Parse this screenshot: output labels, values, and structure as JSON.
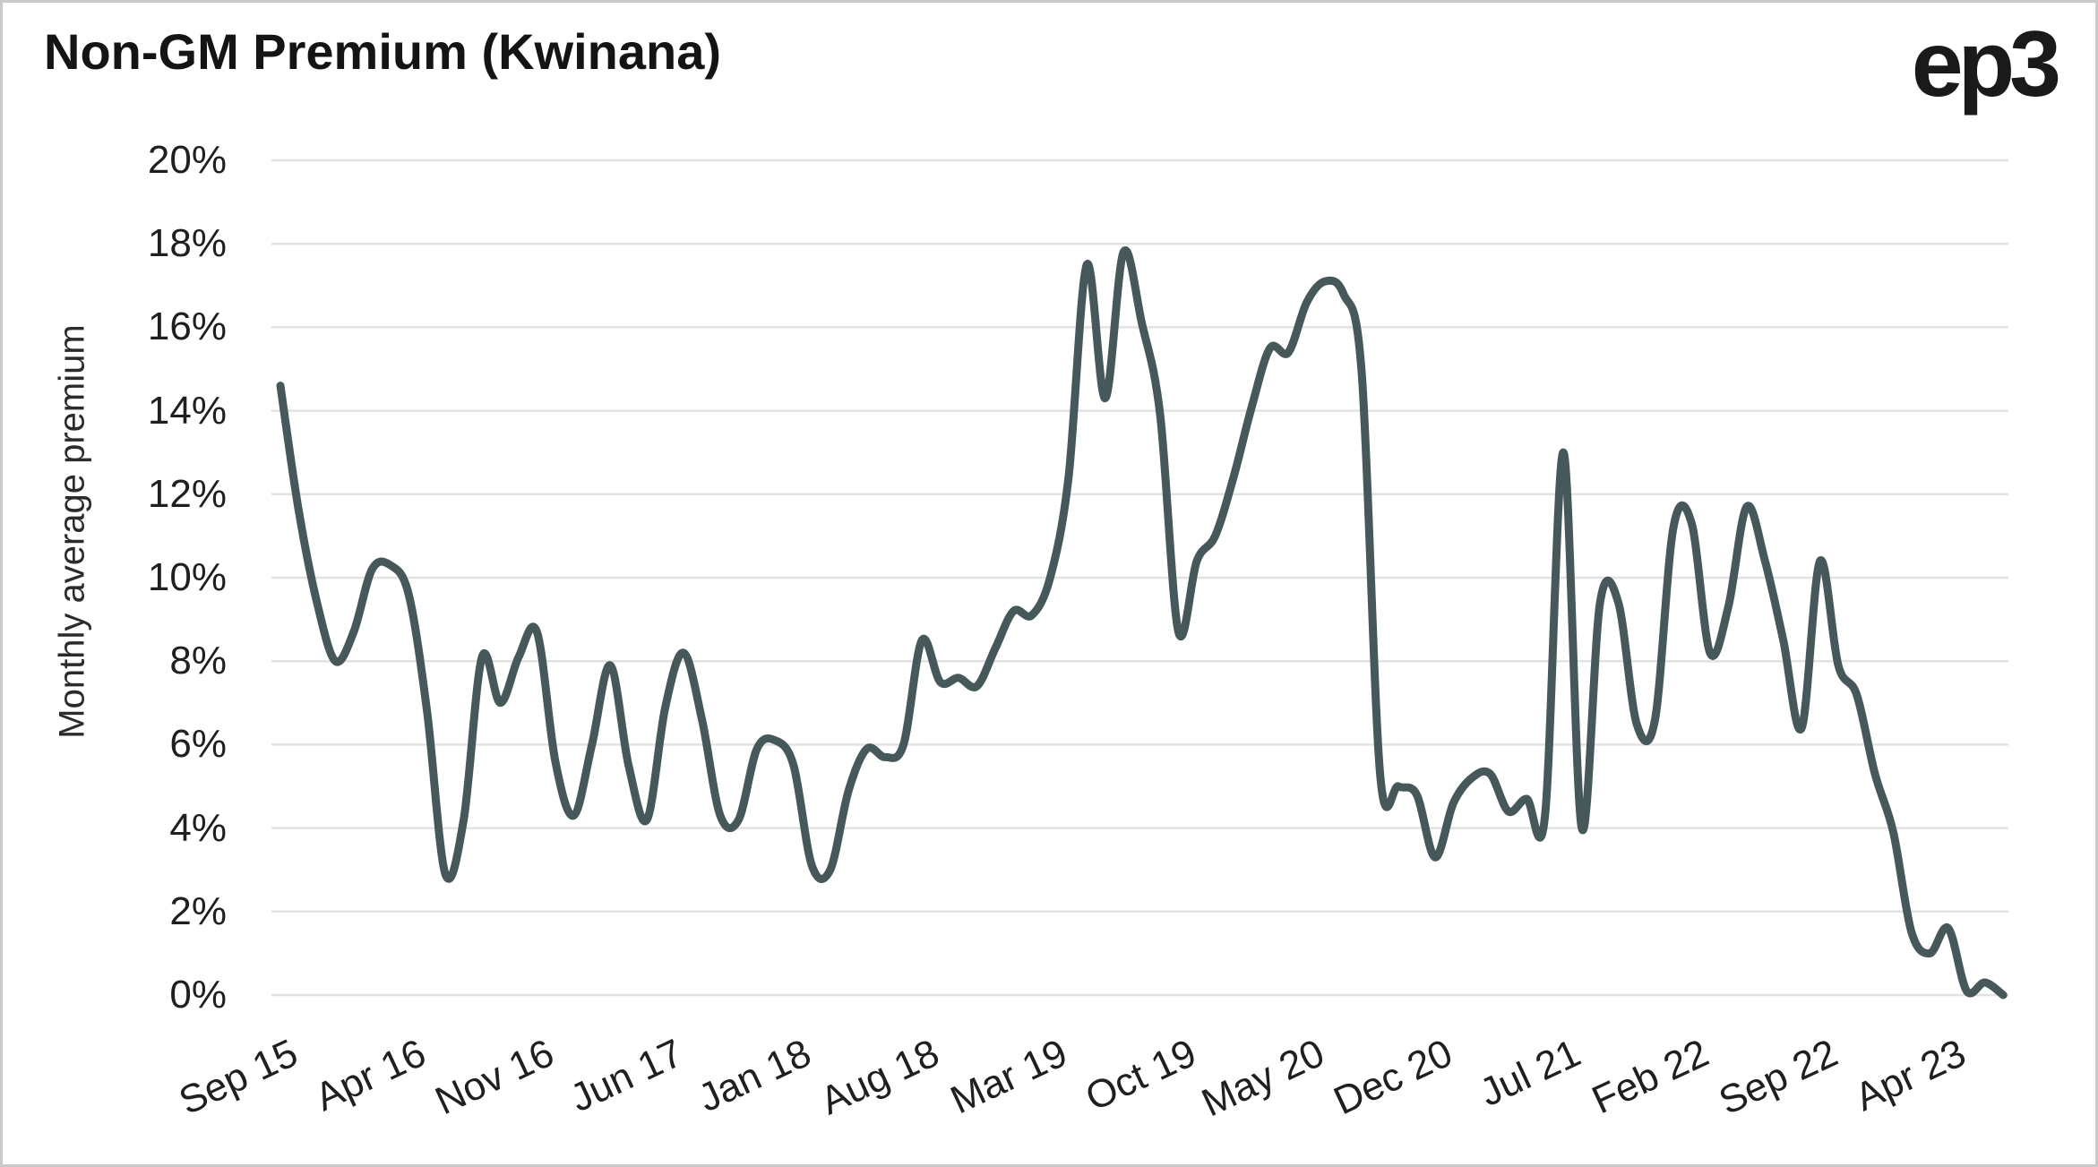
{
  "header": {
    "title": "Non-GM Premium (Kwinana)",
    "logo_text": "ep3"
  },
  "chart_data": {
    "type": "line",
    "title": "Non-GM Premium (Kwinana)",
    "xlabel": "",
    "ylabel": "Monthly average premium",
    "ylim": [
      0,
      20
    ],
    "grid": "horizontal-only",
    "legend": "none",
    "y_ticks": [
      "0%",
      "2%",
      "4%",
      "6%",
      "8%",
      "10%",
      "12%",
      "14%",
      "16%",
      "18%",
      "20%"
    ],
    "x_tick_indices": [
      0,
      7,
      14,
      21,
      28,
      35,
      42,
      49,
      56,
      63,
      70,
      77,
      84,
      91
    ],
    "x_tick_labels": [
      "Sep 15",
      "Apr 16",
      "Nov 16",
      "Jun 17",
      "Jan 18",
      "Aug 18",
      "Mar 19",
      "Oct 19",
      "May 20",
      "Dec 20",
      "Jul 21",
      "Feb 22",
      "Sep 22",
      "Apr 23"
    ],
    "months": [
      "Sep 15",
      "Oct 15",
      "Nov 15",
      "Dec 15",
      "Jan 16",
      "Feb 16",
      "Mar 16",
      "Apr 16",
      "May 16",
      "Jun 16",
      "Jul 16",
      "Aug 16",
      "Sep 16",
      "Oct 16",
      "Nov 16",
      "Dec 16",
      "Jan 17",
      "Feb 17",
      "Mar 17",
      "Apr 17",
      "May 17",
      "Jun 17",
      "Jul 17",
      "Aug 17",
      "Sep 17",
      "Oct 17",
      "Nov 17",
      "Dec 17",
      "Jan 18",
      "Feb 18",
      "Mar 18",
      "Apr 18",
      "May 18",
      "Jun 18",
      "Jul 18",
      "Aug 18",
      "Sep 18",
      "Oct 18",
      "Nov 18",
      "Dec 18",
      "Jan 19",
      "Feb 19",
      "Mar 19",
      "Apr 19",
      "May 19",
      "Jun 19",
      "Jul 19",
      "Aug 19",
      "Sep 19",
      "Oct 19",
      "Nov 19",
      "Dec 19",
      "Jan 20",
      "Feb 20",
      "Mar 20",
      "Apr 20",
      "May 20",
      "Jun 20",
      "Jul 20",
      "Aug 20",
      "Sep 20",
      "Oct 20",
      "Nov 20",
      "Dec 20",
      "Jan 21",
      "Feb 21",
      "Mar 21",
      "Apr 21",
      "May 21",
      "Jun 21",
      "Jul 21",
      "Aug 21",
      "Sep 21",
      "Oct 21",
      "Nov 21",
      "Dec 21",
      "Jan 22",
      "Feb 22",
      "Mar 22",
      "Apr 22",
      "May 22",
      "Jun 22",
      "Jul 22",
      "Aug 22",
      "Sep 22",
      "Oct 22",
      "Nov 22",
      "Dec 22",
      "Jan 23",
      "Feb 23",
      "Mar 23",
      "Apr 23",
      "May 23",
      "Jun 23",
      "Jul 23"
    ],
    "values": [
      14.6,
      11.6,
      9.4,
      8.0,
      8.7,
      10.2,
      10.3,
      9.6,
      6.8,
      2.9,
      4.2,
      8.1,
      7.0,
      8.1,
      8.7,
      5.6,
      4.3,
      6.0,
      7.9,
      5.5,
      4.2,
      6.9,
      8.2,
      6.6,
      4.3,
      4.2,
      5.9,
      6.1,
      5.5,
      3.1,
      3.0,
      4.9,
      5.9,
      5.7,
      6.0,
      8.5,
      7.5,
      7.6,
      7.4,
      8.3,
      9.2,
      9.1,
      10.0,
      12.4,
      17.5,
      14.3,
      17.8,
      16.1,
      13.9,
      8.7,
      10.4,
      11.0,
      12.4,
      14.1,
      15.5,
      15.4,
      16.6,
      17.1,
      16.8,
      14.9,
      5.3,
      5.0,
      4.8,
      3.3,
      4.6,
      5.2,
      5.3,
      4.4,
      4.7,
      4.3,
      13.0,
      4.0,
      9.4,
      9.4,
      6.5,
      6.6,
      11.2,
      11.3,
      8.2,
      9.3,
      11.7,
      10.4,
      8.5,
      6.4,
      10.4,
      7.9,
      7.2,
      5.3,
      3.9,
      1.5,
      1.0,
      1.6,
      0.1,
      0.3,
      0.0
    ],
    "colors": {
      "line": "#47585a",
      "grid": "#e2e2e2",
      "text": "#1f1f1f",
      "title": "#141414"
    }
  }
}
